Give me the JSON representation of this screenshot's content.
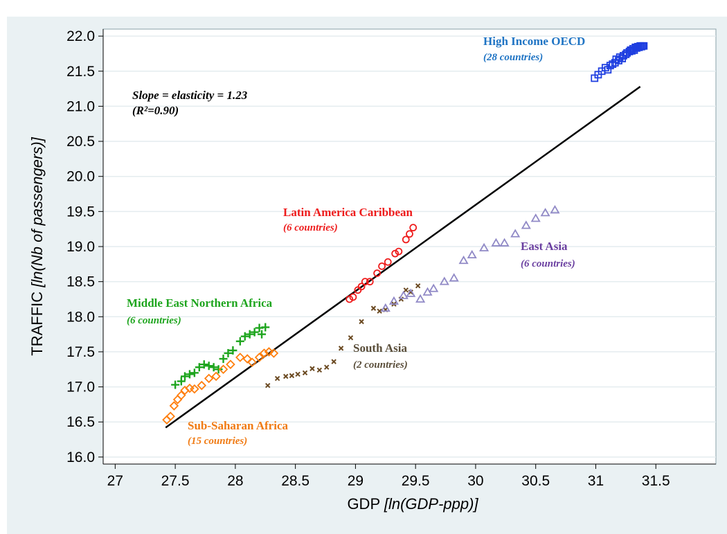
{
  "chart_data": {
    "type": "scatter",
    "title": "",
    "xlabel": {
      "main": "GDP",
      "unit": "[ln(GDP-ppp)]"
    },
    "ylabel": {
      "main": "TRAFFIC",
      "unit": "[ln(Nb of passengers)]"
    },
    "xlim": [
      26.9,
      32.0
    ],
    "ylim": [
      15.9,
      22.1
    ],
    "xticks": [
      "27",
      "27.5",
      "28",
      "28.5",
      "29",
      "29.5",
      "30",
      "30.5",
      "31",
      "31.5"
    ],
    "yticks": [
      "16.0",
      "16.5",
      "17.0",
      "17.5",
      "18.0",
      "18.5",
      "19.0",
      "19.5",
      "20.0",
      "20.5",
      "21.0",
      "21.5",
      "22.0"
    ],
    "grid": "horizontal",
    "annotation": {
      "line1": "Slope = elasticity = 1.23",
      "line2": "(R²=0.90)"
    },
    "fit_line": {
      "x": [
        27.42,
        31.37
      ],
      "y": [
        16.42,
        21.28
      ],
      "color": "#000000"
    },
    "series": [
      {
        "key": "oecd",
        "name": "High Income OECD",
        "count_label": "(28 countries)",
        "marker": "square",
        "color": "#1f3fe0",
        "label_color": "#1f74c4",
        "points": [
          [
            30.99,
            21.4
          ],
          [
            31.02,
            21.45
          ],
          [
            31.05,
            21.5
          ],
          [
            31.08,
            21.55
          ],
          [
            31.1,
            21.52
          ],
          [
            31.12,
            21.58
          ],
          [
            31.14,
            21.6
          ],
          [
            31.16,
            21.62
          ],
          [
            31.17,
            21.67
          ],
          [
            31.19,
            21.65
          ],
          [
            31.2,
            21.7
          ],
          [
            31.22,
            21.68
          ],
          [
            31.23,
            21.72
          ],
          [
            31.25,
            21.74
          ],
          [
            31.26,
            21.76
          ],
          [
            31.28,
            21.78
          ],
          [
            31.29,
            21.8
          ],
          [
            31.3,
            21.79
          ],
          [
            31.31,
            21.82
          ],
          [
            31.32,
            21.8
          ],
          [
            31.33,
            21.84
          ],
          [
            31.34,
            21.83
          ],
          [
            31.35,
            21.85
          ],
          [
            31.36,
            21.84
          ],
          [
            31.37,
            21.86
          ],
          [
            31.38,
            21.85
          ],
          [
            31.39,
            21.86
          ],
          [
            31.4,
            21.86
          ]
        ]
      },
      {
        "key": "lac",
        "name": "Latin America Caribbean",
        "count_label": "(6 countries)",
        "marker": "circle",
        "color": "#ee1c1c",
        "label_color": "#ee1c1c",
        "points": [
          [
            28.95,
            18.25
          ],
          [
            28.98,
            18.28
          ],
          [
            29.02,
            18.38
          ],
          [
            29.05,
            18.43
          ],
          [
            29.08,
            18.5
          ],
          [
            29.12,
            18.5
          ],
          [
            29.18,
            18.62
          ],
          [
            29.22,
            18.72
          ],
          [
            29.27,
            18.78
          ],
          [
            29.33,
            18.9
          ],
          [
            29.36,
            18.93
          ],
          [
            29.42,
            19.1
          ],
          [
            29.45,
            19.18
          ],
          [
            29.48,
            19.27
          ]
        ]
      },
      {
        "key": "mena",
        "name": "Middle East Northern Africa",
        "count_label": "(6 countries)",
        "marker": "plus",
        "color": "#1ea51e",
        "label_color": "#1ea51e",
        "points": [
          [
            27.5,
            17.03
          ],
          [
            27.55,
            17.08
          ],
          [
            27.58,
            17.15
          ],
          [
            27.62,
            17.18
          ],
          [
            27.66,
            17.2
          ],
          [
            27.7,
            17.28
          ],
          [
            27.74,
            17.32
          ],
          [
            27.78,
            17.3
          ],
          [
            27.82,
            17.28
          ],
          [
            27.86,
            17.25
          ],
          [
            27.9,
            17.4
          ],
          [
            27.94,
            17.48
          ],
          [
            27.98,
            17.52
          ],
          [
            28.04,
            17.65
          ],
          [
            28.08,
            17.72
          ],
          [
            28.12,
            17.75
          ],
          [
            28.16,
            17.78
          ],
          [
            28.2,
            17.84
          ],
          [
            28.22,
            17.75
          ],
          [
            28.25,
            17.85
          ]
        ]
      },
      {
        "key": "ssa",
        "name": "Sub-Saharan Africa",
        "count_label": "(15 countries)",
        "marker": "diamond",
        "color": "#ff7f0e",
        "label_color": "#f07a12",
        "points": [
          [
            27.43,
            16.53
          ],
          [
            27.46,
            16.58
          ],
          [
            27.49,
            16.73
          ],
          [
            27.52,
            16.82
          ],
          [
            27.55,
            16.88
          ],
          [
            27.58,
            16.95
          ],
          [
            27.62,
            16.98
          ],
          [
            27.66,
            16.97
          ],
          [
            27.72,
            17.02
          ],
          [
            27.78,
            17.12
          ],
          [
            27.84,
            17.15
          ],
          [
            27.9,
            17.25
          ],
          [
            27.96,
            17.32
          ],
          [
            28.04,
            17.42
          ],
          [
            28.1,
            17.4
          ],
          [
            28.14,
            17.35
          ],
          [
            28.2,
            17.42
          ],
          [
            28.24,
            17.48
          ],
          [
            28.28,
            17.5
          ],
          [
            28.32,
            17.48
          ]
        ]
      },
      {
        "key": "sa",
        "name": "South Asia",
        "count_label": "(2 countries)",
        "marker": "x",
        "color": "#6b4a22",
        "label_color": "#5a4e3a",
        "points": [
          [
            28.27,
            17.02
          ],
          [
            28.35,
            17.12
          ],
          [
            28.42,
            17.15
          ],
          [
            28.47,
            17.16
          ],
          [
            28.52,
            17.18
          ],
          [
            28.58,
            17.2
          ],
          [
            28.64,
            17.26
          ],
          [
            28.7,
            17.24
          ],
          [
            28.76,
            17.28
          ],
          [
            28.82,
            17.36
          ],
          [
            28.88,
            17.55
          ],
          [
            28.96,
            17.7
          ],
          [
            29.05,
            17.93
          ],
          [
            29.15,
            18.12
          ],
          [
            29.2,
            18.08
          ],
          [
            29.25,
            18.1
          ],
          [
            29.32,
            18.18
          ],
          [
            29.38,
            18.25
          ],
          [
            29.42,
            18.38
          ],
          [
            29.46,
            18.35
          ],
          [
            29.52,
            18.44
          ]
        ]
      },
      {
        "key": "ea",
        "name": "East Asia",
        "count_label": "(6 countries)",
        "marker": "triangle",
        "color": "#9089c6",
        "label_color": "#6a3fa0",
        "points": [
          [
            29.25,
            18.12
          ],
          [
            29.32,
            18.22
          ],
          [
            29.4,
            18.3
          ],
          [
            29.46,
            18.33
          ],
          [
            29.54,
            18.25
          ],
          [
            29.6,
            18.35
          ],
          [
            29.65,
            18.4
          ],
          [
            29.74,
            18.5
          ],
          [
            29.82,
            18.55
          ],
          [
            29.9,
            18.8
          ],
          [
            29.97,
            18.88
          ],
          [
            30.07,
            18.98
          ],
          [
            30.17,
            19.05
          ],
          [
            30.24,
            19.05
          ],
          [
            30.33,
            19.18
          ],
          [
            30.42,
            19.3
          ],
          [
            30.5,
            19.4
          ],
          [
            30.58,
            19.48
          ],
          [
            30.66,
            19.52
          ]
        ]
      }
    ]
  }
}
